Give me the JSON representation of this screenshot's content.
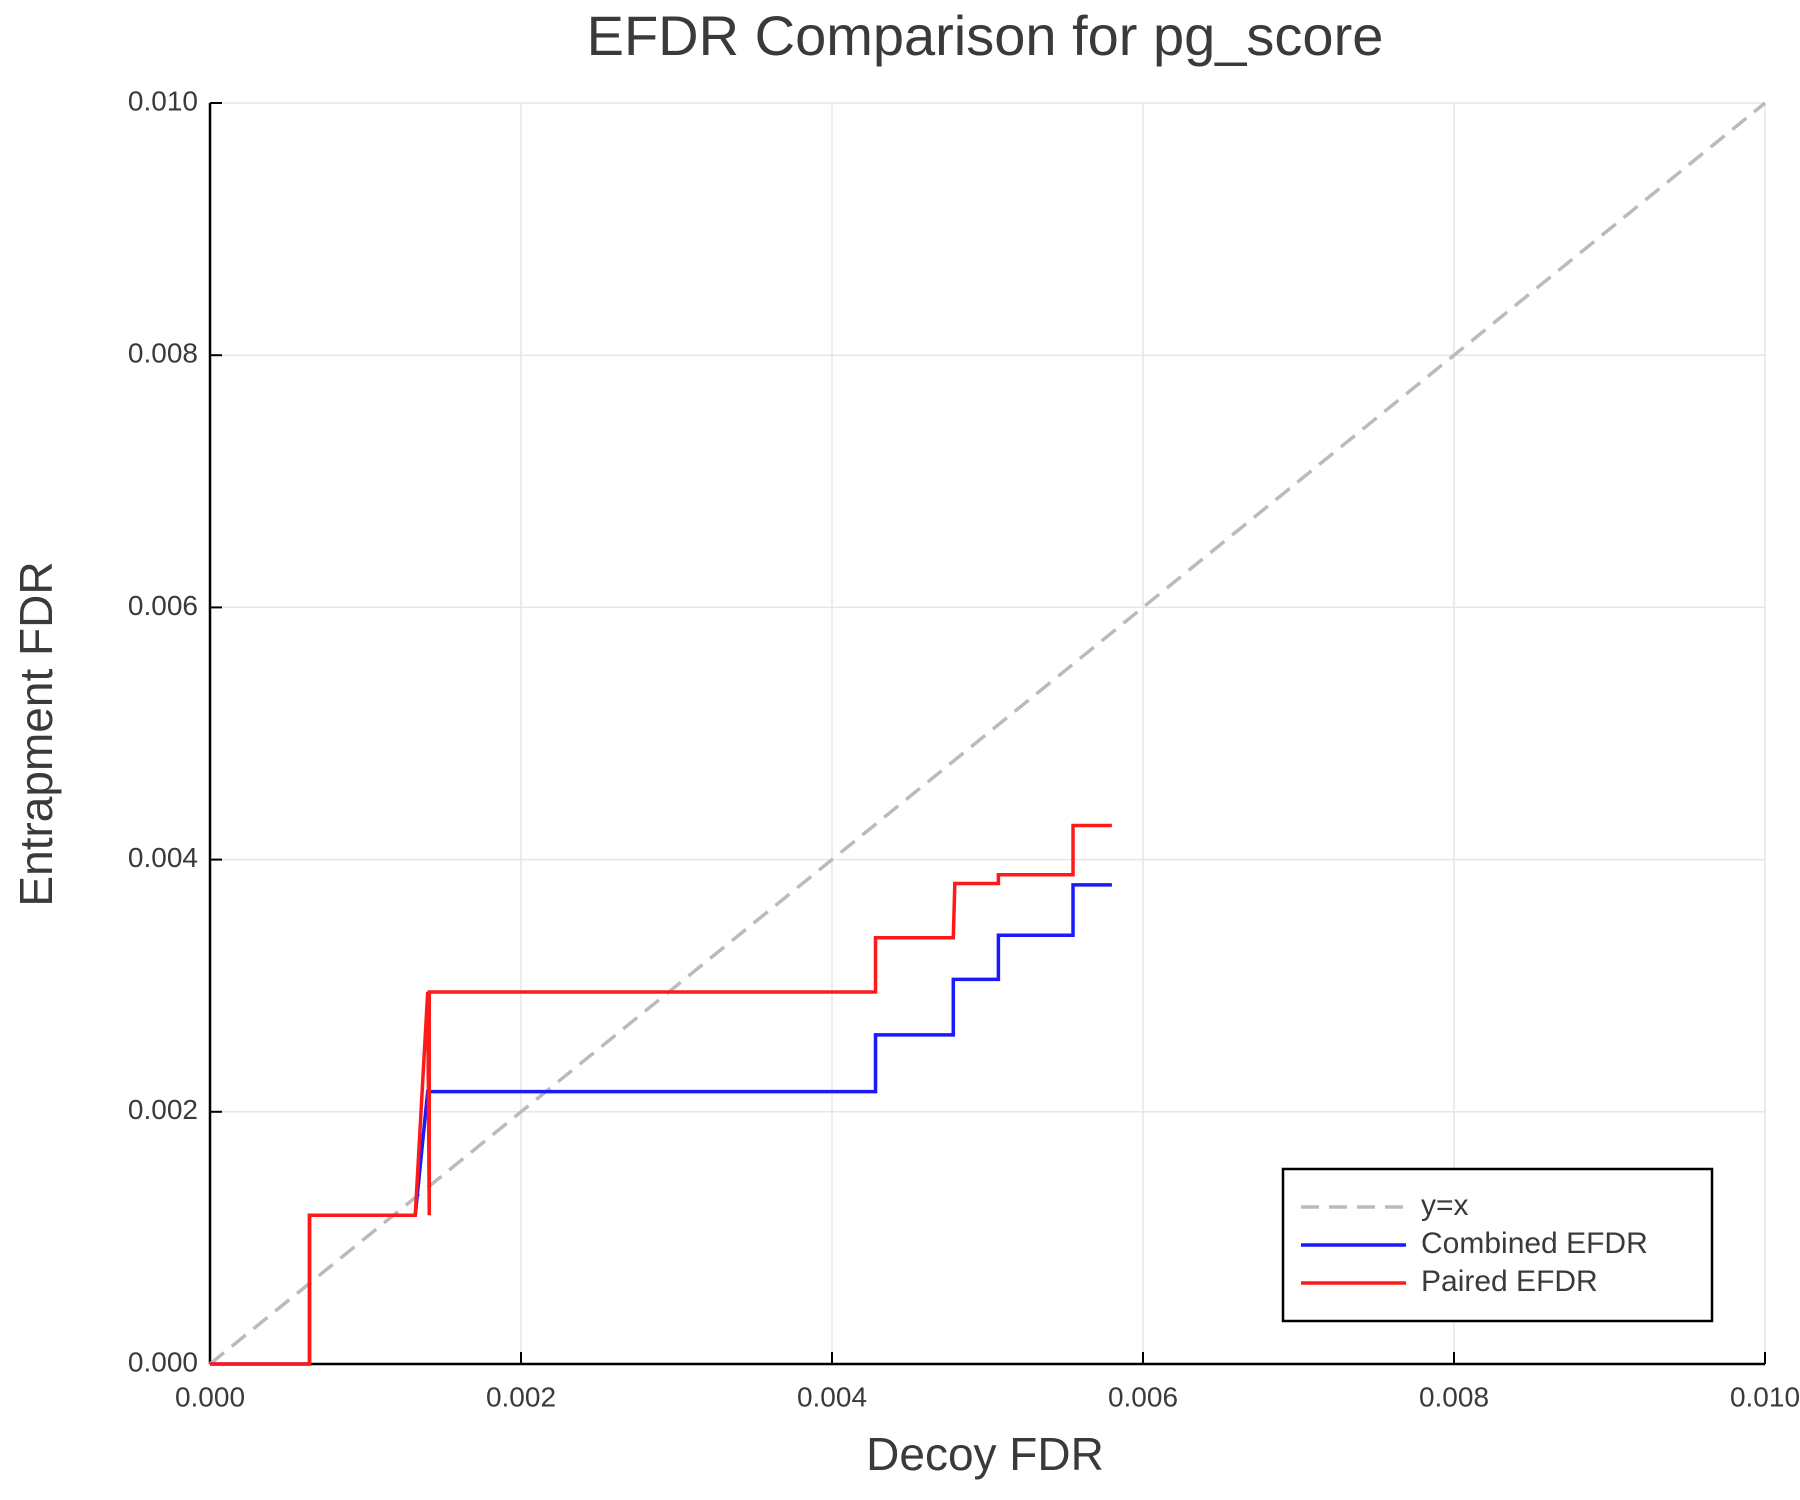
{
  "chart_data": {
    "type": "line",
    "title": "EFDR Comparison for pg_score",
    "xlabel": "Decoy FDR",
    "ylabel": "Entrapment FDR",
    "xlim": [
      0,
      0.01
    ],
    "ylim": [
      0,
      0.01
    ],
    "xticks": [
      {
        "value": 0,
        "label": "0.000"
      },
      {
        "value": 0.002,
        "label": "0.002"
      },
      {
        "value": 0.004,
        "label": "0.004"
      },
      {
        "value": 0.006,
        "label": "0.006"
      },
      {
        "value": 0.008,
        "label": "0.008"
      },
      {
        "value": 0.01,
        "label": "0.010"
      }
    ],
    "yticks": [
      {
        "value": 0,
        "label": "0.000"
      },
      {
        "value": 0.002,
        "label": "0.002"
      },
      {
        "value": 0.004,
        "label": "0.004"
      },
      {
        "value": 0.006,
        "label": "0.006"
      },
      {
        "value": 0.008,
        "label": "0.008"
      },
      {
        "value": 0.01,
        "label": "0.010"
      }
    ],
    "grid": true,
    "legend": "bottom-right",
    "series": [
      {
        "name": "y=x",
        "color": "#bbbbbb",
        "dashed": true,
        "x": [
          0,
          0.01
        ],
        "values": [
          0,
          0.01
        ]
      },
      {
        "name": "Combined EFDR",
        "color": "#1a1aff",
        "dashed": false,
        "x": [
          0,
          0.00064,
          0.00064,
          0.00132,
          0.0014,
          0.00428,
          0.00428,
          0.00478,
          0.00478,
          0.00507,
          0.00507,
          0.00555,
          0.00555,
          0.0058
        ],
        "values": [
          0,
          0,
          0.00118,
          0.00118,
          0.00216,
          0.00216,
          0.00261,
          0.00261,
          0.00305,
          0.00305,
          0.0034,
          0.0034,
          0.0038,
          0.0038
        ]
      },
      {
        "name": "Paired EFDR",
        "color": "#ff1a1a",
        "dashed": false,
        "x": [
          0,
          0.00064,
          0.00064,
          0.00132,
          0.0014,
          0.00141,
          0.00141,
          0.00428,
          0.00428,
          0.00478,
          0.00479,
          0.00507,
          0.00507,
          0.00555,
          0.00555,
          0.0058
        ],
        "values": [
          0,
          0,
          0.00118,
          0.00118,
          0.00295,
          0.00118,
          0.00295,
          0.00295,
          0.00338,
          0.00338,
          0.00381,
          0.00381,
          0.00388,
          0.00388,
          0.00427,
          0.00427
        ]
      }
    ]
  }
}
